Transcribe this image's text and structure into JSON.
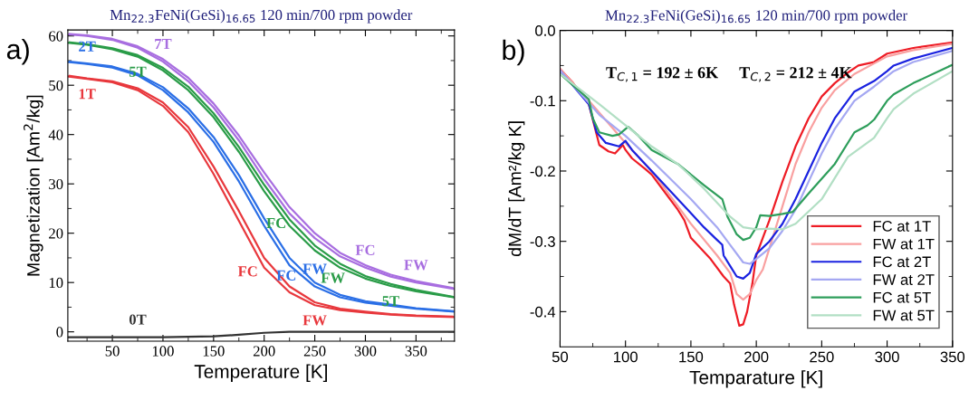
{
  "chart_data": [
    {
      "type": "line",
      "title": "Mn$_{22.3}$FeNi(GeSi)$_{16.65}$ 120 min/700 rpm powder",
      "xlabel": "Temperature [K]",
      "ylabel": "Magnetization [Am$^{2}$/kg]",
      "xlim": [
        6,
        388
      ],
      "xticks": [
        50,
        100,
        150,
        200,
        250,
        300,
        350
      ],
      "ylim": [
        -1.9,
        61.2
      ],
      "yticks": [
        0,
        10,
        20,
        30,
        40,
        50,
        60
      ],
      "x": [
        6,
        25,
        50,
        75,
        100,
        125,
        150,
        175,
        200,
        225,
        250,
        275,
        300,
        325,
        350,
        388
      ],
      "series": [
        {
          "color": "#e8383d",
          "values": [
            51.8,
            51.3,
            50.6,
            49.0,
            45.8,
            40.5,
            32.0,
            22.5,
            13.0,
            8.0,
            5.4,
            4.4,
            3.9,
            3.5,
            3.2,
            3.0
          ]
        },
        {
          "color": "#e8383d",
          "x": [
            8,
            25,
            50,
            75,
            100,
            125,
            150,
            175,
            200,
            225,
            250,
            275,
            300,
            325,
            350,
            386
          ],
          "values": [
            51.9,
            51.4,
            50.8,
            49.4,
            46.5,
            41.5,
            33.5,
            24.5,
            15.0,
            9.2,
            6.0,
            4.7,
            4.1,
            3.6,
            3.3,
            3.1
          ]
        },
        {
          "color": "#2b6fe6",
          "values": [
            54.7,
            54.3,
            53.6,
            52.0,
            49.0,
            44.5,
            38.5,
            30.5,
            21.5,
            13.5,
            9.2,
            7.0,
            5.9,
            5.3,
            4.7,
            4.1
          ]
        },
        {
          "color": "#2b6fe6",
          "x": [
            8,
            25,
            50,
            75,
            100,
            125,
            150,
            175,
            200,
            225,
            250,
            275,
            300,
            325,
            350,
            386
          ],
          "values": [
            54.8,
            54.4,
            53.8,
            52.3,
            49.6,
            45.3,
            39.5,
            31.8,
            23.0,
            15.0,
            10.0,
            7.5,
            6.2,
            5.5,
            4.8,
            4.2
          ]
        },
        {
          "color": "#2a9c48",
          "values": [
            58.6,
            58.2,
            57.3,
            55.8,
            53.0,
            49.0,
            43.5,
            36.5,
            28.5,
            21.5,
            16.5,
            13.0,
            10.8,
            9.3,
            8.2,
            7.0
          ]
        },
        {
          "color": "#2a9c48",
          "x": [
            8,
            25,
            50,
            75,
            100,
            125,
            150,
            175,
            200,
            225,
            250,
            275,
            300,
            325,
            350,
            386
          ],
          "values": [
            58.7,
            58.3,
            57.5,
            56.1,
            53.5,
            49.7,
            44.3,
            37.5,
            29.8,
            22.8,
            17.5,
            13.8,
            11.3,
            9.7,
            8.5,
            7.1
          ]
        },
        {
          "color": "#a86ee0",
          "values": [
            60.3,
            60.0,
            59.2,
            57.6,
            54.8,
            50.8,
            45.5,
            38.8,
            31.0,
            24.0,
            19.0,
            15.3,
            13.0,
            11.2,
            10.0,
            8.7
          ]
        },
        {
          "color": "#a86ee0",
          "x": [
            8,
            25,
            50,
            75,
            100,
            125,
            150,
            175,
            200,
            225,
            250,
            275,
            300,
            325,
            350,
            386
          ],
          "values": [
            60.4,
            60.1,
            59.4,
            57.9,
            55.3,
            51.5,
            46.3,
            39.8,
            32.3,
            25.3,
            20.0,
            16.0,
            13.5,
            11.6,
            10.3,
            8.9
          ]
        },
        {
          "color": "#333333",
          "values": [
            -1.1,
            -1.1,
            -1.1,
            -1.1,
            -1.1,
            -1.0,
            -0.9,
            -0.6,
            -0.2,
            0.0,
            0.0,
            0.0,
            0.0,
            0.0,
            0.0,
            0.0
          ]
        }
      ],
      "annotations": [
        "a)",
        {
          "text": "7T",
          "x": 100,
          "y": 54.8
        },
        {
          "text": "2T",
          "x": 25,
          "y": 54.3
        },
        {
          "text": "5T",
          "x": 75,
          "y": 55.8
        },
        {
          "text": "1T",
          "x": 25,
          "y": 51.3
        },
        {
          "text": "0T",
          "x": 75,
          "y": -1.1
        },
        {
          "text": "5T",
          "x": 325,
          "y": 9.3
        },
        {
          "text": "FC",
          "x": 212,
          "y": 25.1
        },
        {
          "text": "FW",
          "x": 268,
          "y": 14.0
        },
        {
          "text": "FC",
          "x": 222,
          "y": 14.5
        },
        {
          "text": "FW",
          "x": 250,
          "y": 9.2
        },
        {
          "text": "FC",
          "x": 205,
          "y": 12.0
        },
        {
          "text": "FW",
          "x": 250,
          "y": 5.4
        },
        {
          "text": "FC",
          "x": 300,
          "y": 13.0
        },
        {
          "text": "FW",
          "x": 350,
          "y": 10.0
        }
      ]
    },
    {
      "type": "line",
      "title": "Mn$_{22.3}$FeNi(GeSi)$_{16.65}$ 120 min/700 rpm powder",
      "xlabel": "Temparature [K]",
      "ylabel": "dM/dT [Am²/kg K]",
      "xlim": [
        50,
        350
      ],
      "xticks": [
        50,
        100,
        150,
        200,
        250,
        300,
        350
      ],
      "ylim": [
        -0.45,
        0.0
      ],
      "yticks": [
        {
          "value": -0.4,
          "label": "-0.4"
        },
        {
          "value": -0.3,
          "label": "-0.3"
        },
        {
          "value": -0.2,
          "label": "-0.2"
        },
        {
          "value": -0.1,
          "label": "-0.1"
        },
        {
          "value": 0.0,
          "label": "0.0"
        }
      ],
      "legend": "bottom right",
      "series": [
        {
          "name": "FC at 1T",
          "color": "#ee1c25",
          "x": [
            50,
            60,
            72,
            80,
            87,
            92,
            98,
            100,
            105,
            115,
            120,
            130,
            140,
            145,
            150,
            155,
            165,
            175,
            180,
            183,
            187,
            190,
            193,
            197,
            200,
            210,
            220,
            230,
            240,
            250,
            260,
            270,
            278,
            290,
            300,
            320,
            350
          ],
          "values": [
            -0.055,
            -0.075,
            -0.105,
            -0.163,
            -0.172,
            -0.175,
            -0.163,
            -0.17,
            -0.182,
            -0.197,
            -0.205,
            -0.23,
            -0.255,
            -0.27,
            -0.295,
            -0.305,
            -0.325,
            -0.35,
            -0.36,
            -0.39,
            -0.42,
            -0.418,
            -0.4,
            -0.36,
            -0.32,
            -0.27,
            -0.215,
            -0.165,
            -0.125,
            -0.094,
            -0.075,
            -0.06,
            -0.05,
            -0.045,
            -0.033,
            -0.025,
            -0.017
          ]
        },
        {
          "name": "FW at 1T",
          "color": "#f9a0a0",
          "x": [
            50,
            72,
            100,
            120,
            150,
            170,
            180,
            185,
            190,
            195,
            200,
            205,
            210,
            220,
            230,
            240,
            250,
            260,
            275,
            290,
            300,
            320,
            350
          ],
          "values": [
            -0.055,
            -0.1,
            -0.16,
            -0.2,
            -0.275,
            -0.32,
            -0.345,
            -0.375,
            -0.383,
            -0.375,
            -0.355,
            -0.34,
            -0.31,
            -0.25,
            -0.19,
            -0.145,
            -0.11,
            -0.085,
            -0.062,
            -0.047,
            -0.037,
            -0.028,
            -0.019
          ]
        },
        {
          "name": "FC at 2T",
          "color": "#1a22e0",
          "x": [
            50,
            72,
            78,
            85,
            95,
            100,
            105,
            120,
            140,
            150,
            160,
            170,
            174,
            175,
            180,
            185,
            190,
            195,
            200,
            210,
            220,
            230,
            240,
            250,
            260,
            275,
            290,
            300,
            305,
            320,
            350
          ],
          "values": [
            -0.057,
            -0.105,
            -0.145,
            -0.16,
            -0.165,
            -0.157,
            -0.17,
            -0.2,
            -0.24,
            -0.26,
            -0.28,
            -0.298,
            -0.305,
            -0.32,
            -0.335,
            -0.35,
            -0.353,
            -0.345,
            -0.318,
            -0.3,
            -0.275,
            -0.24,
            -0.2,
            -0.16,
            -0.125,
            -0.087,
            -0.072,
            -0.058,
            -0.05,
            -0.04,
            -0.025
          ]
        },
        {
          "name": "FW at 2T",
          "color": "#a5a8f2",
          "x": [
            50,
            80,
            100,
            120,
            150,
            170,
            180,
            190,
            195,
            200,
            210,
            220,
            230,
            240,
            250,
            260,
            275,
            290,
            305,
            320,
            350
          ],
          "values": [
            -0.057,
            -0.12,
            -0.15,
            -0.185,
            -0.24,
            -0.28,
            -0.305,
            -0.33,
            -0.332,
            -0.325,
            -0.31,
            -0.285,
            -0.255,
            -0.215,
            -0.175,
            -0.14,
            -0.1,
            -0.08,
            -0.058,
            -0.045,
            -0.029
          ]
        },
        {
          "name": "FC at 5T",
          "color": "#2e9e5b",
          "x": [
            50,
            72,
            75,
            80,
            90,
            95,
            102,
            110,
            120,
            140,
            160,
            174,
            178,
            185,
            190,
            195,
            200,
            203,
            210,
            220,
            228,
            240,
            260,
            275,
            285,
            290,
            300,
            305,
            320,
            350
          ],
          "values": [
            -0.062,
            -0.098,
            -0.125,
            -0.145,
            -0.15,
            -0.148,
            -0.137,
            -0.15,
            -0.17,
            -0.19,
            -0.22,
            -0.24,
            -0.265,
            -0.29,
            -0.298,
            -0.295,
            -0.28,
            -0.263,
            -0.264,
            -0.261,
            -0.258,
            -0.232,
            -0.19,
            -0.145,
            -0.135,
            -0.127,
            -0.1,
            -0.091,
            -0.075,
            -0.049
          ]
        },
        {
          "name": "FW at 5T",
          "color": "#b2dfc4",
          "x": [
            50,
            80,
            100,
            120,
            140,
            160,
            180,
            190,
            200,
            210,
            220,
            230,
            250,
            270,
            290,
            300,
            305,
            320,
            350
          ],
          "values": [
            -0.062,
            -0.105,
            -0.135,
            -0.165,
            -0.19,
            -0.225,
            -0.265,
            -0.28,
            -0.283,
            -0.282,
            -0.283,
            -0.275,
            -0.24,
            -0.18,
            -0.153,
            -0.125,
            -0.112,
            -0.09,
            -0.058
          ]
        }
      ],
      "annotations": [
        "b)",
        "T$_{C,1}$ = 192 ± 6K",
        "T$_{C,2}$ = 212 ± 4K"
      ]
    }
  ]
}
